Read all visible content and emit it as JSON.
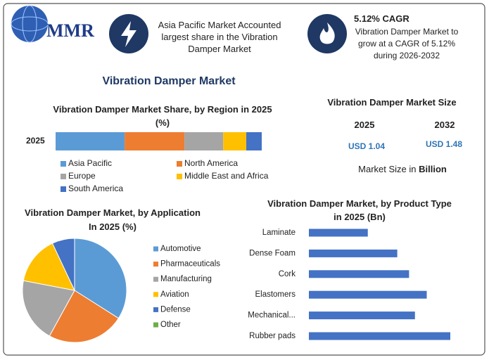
{
  "logo": {
    "text": "MMR"
  },
  "highlights": [
    {
      "text": "Asia Pacific Market Accounted largest share in the Vibration Damper Market"
    },
    {
      "title": "5.12% CAGR",
      "text": "Vibration Damper Market to grow at a CAGR of 5.12% during 2026-2032"
    }
  ],
  "title": "Vibration Damper Market",
  "market_size": {
    "title": "Vibration Damper Market Size",
    "years": [
      "2025",
      "2032"
    ],
    "values": [
      "USD 1.04",
      "USD 1.48"
    ],
    "note": "Market Size in",
    "unit": "Billion"
  },
  "chart_data": [
    {
      "type": "stacked-bar",
      "orientation": "horizontal",
      "title": "Vibration Damper Market Share, by Region in 2025 (%)",
      "categories": [
        "2025"
      ],
      "series": [
        {
          "name": "Asia Pacific",
          "color": "#5b9bd5",
          "values": [
            33.5
          ]
        },
        {
          "name": "North America",
          "color": "#ed7d31",
          "values": [
            29
          ]
        },
        {
          "name": "Europe",
          "color": "#a5a5a5",
          "values": [
            18.8
          ]
        },
        {
          "name": "Middle East and Africa",
          "color": "#ffc000",
          "values": [
            11.2
          ]
        },
        {
          "name": "South America",
          "color": "#4472c4",
          "values": [
            7.5
          ]
        }
      ],
      "legend": "bottom"
    },
    {
      "type": "pie",
      "title": "Vibration Damper Market, by Application In 2025 (%)",
      "categories": [
        "Automotive",
        "Pharmaceuticals",
        "Manufacturing",
        "Aviation",
        "Defense",
        "Other"
      ],
      "values": [
        34,
        24,
        20,
        15,
        7,
        0
      ],
      "colors": [
        "#5b9bd5",
        "#ed7d31",
        "#a5a5a5",
        "#ffc000",
        "#4472c4",
        "#70ad47"
      ],
      "legend": "right"
    },
    {
      "type": "bar",
      "orientation": "horizontal",
      "title": "Vibration Damper Market, by Product Type in 2025 (Bn)",
      "categories": [
        "Laminate",
        "Dense Foam",
        "Cork",
        "Elastomers",
        "Mechanical...",
        "Rubber pads"
      ],
      "values": [
        0.1,
        0.15,
        0.17,
        0.2,
        0.18,
        0.24
      ],
      "color": "#4472c4"
    }
  ]
}
